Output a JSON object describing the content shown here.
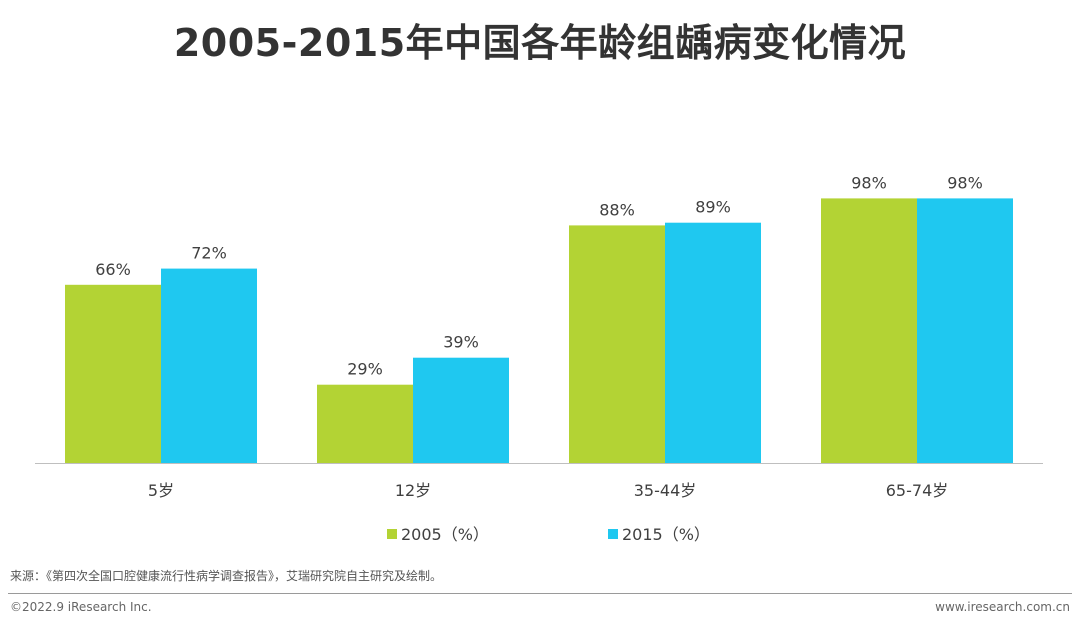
{
  "page": {
    "title": "2005-2015年中国各年龄组龋病变化情况",
    "source": "来源：《第四次全国口腔健康流行性病学调查报告》，艾瑞研究院自主研究及绘制。",
    "copyright": "©2022.9 iResearch Inc.",
    "website": "www.iresearch.com.cn"
  },
  "chart_data": {
    "type": "bar",
    "categories": [
      "5岁",
      "12岁",
      "35-44岁",
      "65-74岁"
    ],
    "series": [
      {
        "name": "2005（%）",
        "values": [
          66,
          29,
          88,
          98
        ],
        "labels": [
          "66%",
          "29%",
          "88%",
          "98%"
        ],
        "color": "#b3d334"
      },
      {
        "name": "2015（%）",
        "values": [
          72,
          39,
          89,
          98
        ],
        "labels": [
          "72%",
          "39%",
          "89%",
          "98%"
        ],
        "color": "#1fc8f0"
      }
    ],
    "ylim": [
      0,
      100
    ],
    "grid": false,
    "legend": "bottom-center"
  }
}
